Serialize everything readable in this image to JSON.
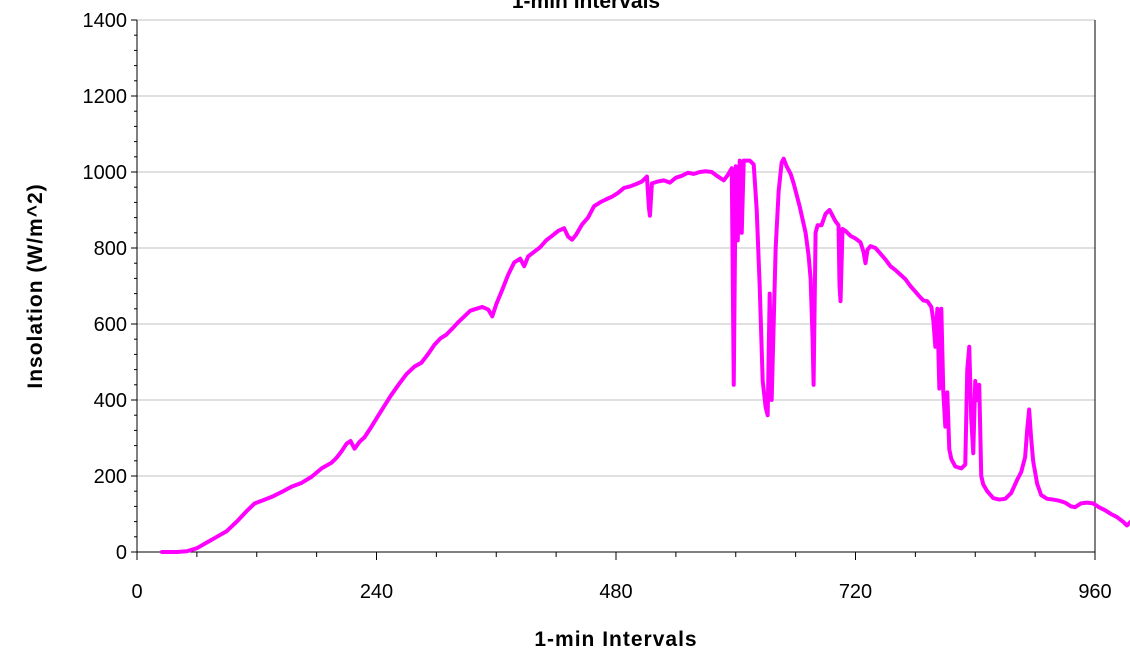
{
  "chart_data": {
    "type": "line",
    "title": "1-min Intervals",
    "xlabel": "1-min Intervals",
    "ylabel": "Insolation (W/m^2)",
    "xlim": [
      0,
      960
    ],
    "ylim": [
      0,
      1400
    ],
    "xticks": [
      0,
      240,
      480,
      720,
      960
    ],
    "yticks": [
      0,
      200,
      400,
      600,
      800,
      1000,
      1200,
      1400
    ],
    "grid": true,
    "line_color": "#ff00ff",
    "series": [
      {
        "values": [
          [
            25,
            0
          ],
          [
            40,
            0
          ],
          [
            50,
            2
          ],
          [
            60,
            10
          ],
          [
            70,
            25
          ],
          [
            80,
            40
          ],
          [
            90,
            55
          ],
          [
            100,
            80
          ],
          [
            110,
            108
          ],
          [
            118,
            128
          ],
          [
            125,
            135
          ],
          [
            135,
            145
          ],
          [
            145,
            158
          ],
          [
            155,
            172
          ],
          [
            165,
            182
          ],
          [
            175,
            198
          ],
          [
            185,
            220
          ],
          [
            195,
            235
          ],
          [
            200,
            248
          ],
          [
            205,
            265
          ],
          [
            210,
            285
          ],
          [
            214,
            292
          ],
          [
            218,
            272
          ],
          [
            223,
            290
          ],
          [
            228,
            302
          ],
          [
            235,
            330
          ],
          [
            242,
            360
          ],
          [
            248,
            385
          ],
          [
            254,
            410
          ],
          [
            262,
            440
          ],
          [
            270,
            468
          ],
          [
            278,
            488
          ],
          [
            285,
            498
          ],
          [
            292,
            522
          ],
          [
            298,
            545
          ],
          [
            304,
            562
          ],
          [
            310,
            572
          ],
          [
            316,
            588
          ],
          [
            322,
            605
          ],
          [
            328,
            620
          ],
          [
            334,
            635
          ],
          [
            340,
            640
          ],
          [
            346,
            645
          ],
          [
            352,
            638
          ],
          [
            356,
            620
          ],
          [
            360,
            652
          ],
          [
            366,
            690
          ],
          [
            372,
            730
          ],
          [
            378,
            762
          ],
          [
            384,
            772
          ],
          [
            388,
            752
          ],
          [
            392,
            778
          ],
          [
            398,
            790
          ],
          [
            404,
            802
          ],
          [
            410,
            820
          ],
          [
            416,
            832
          ],
          [
            422,
            845
          ],
          [
            428,
            852
          ],
          [
            432,
            830
          ],
          [
            436,
            822
          ],
          [
            440,
            835
          ],
          [
            446,
            862
          ],
          [
            452,
            880
          ],
          [
            458,
            910
          ],
          [
            464,
            920
          ],
          [
            470,
            928
          ],
          [
            476,
            935
          ],
          [
            482,
            945
          ],
          [
            488,
            958
          ],
          [
            494,
            962
          ],
          [
            500,
            968
          ],
          [
            506,
            975
          ],
          [
            511,
            988
          ],
          [
            513,
            905
          ],
          [
            514,
            885
          ],
          [
            516,
            970
          ],
          [
            522,
            975
          ],
          [
            528,
            978
          ],
          [
            534,
            972
          ],
          [
            540,
            985
          ],
          [
            546,
            990
          ],
          [
            552,
            998
          ],
          [
            558,
            995
          ],
          [
            564,
            1000
          ],
          [
            570,
            1002
          ],
          [
            576,
            1000
          ],
          [
            580,
            992
          ],
          [
            584,
            985
          ],
          [
            588,
            978
          ],
          [
            592,
            992
          ],
          [
            596,
            1010
          ],
          [
            598,
            440
          ],
          [
            600,
            1015
          ],
          [
            602,
            820
          ],
          [
            604,
            1030
          ],
          [
            606,
            840
          ],
          [
            608,
            1030
          ],
          [
            614,
            1030
          ],
          [
            618,
            1020
          ],
          [
            621,
            900
          ],
          [
            624,
            700
          ],
          [
            627,
            450
          ],
          [
            630,
            380
          ],
          [
            632,
            360
          ],
          [
            634,
            680
          ],
          [
            636,
            400
          ],
          [
            638,
            600
          ],
          [
            640,
            800
          ],
          [
            643,
            950
          ],
          [
            646,
            1025
          ],
          [
            648,
            1035
          ],
          [
            651,
            1015
          ],
          [
            655,
            995
          ],
          [
            658,
            970
          ],
          [
            661,
            940
          ],
          [
            664,
            910
          ],
          [
            667,
            875
          ],
          [
            670,
            840
          ],
          [
            673,
            780
          ],
          [
            675,
            720
          ],
          [
            677,
            560
          ],
          [
            678,
            440
          ],
          [
            680,
            840
          ],
          [
            682,
            860
          ],
          [
            686,
            860
          ],
          [
            690,
            890
          ],
          [
            694,
            900
          ],
          [
            696,
            890
          ],
          [
            700,
            870
          ],
          [
            703,
            860
          ],
          [
            704,
            700
          ],
          [
            705,
            660
          ],
          [
            707,
            850
          ],
          [
            710,
            845
          ],
          [
            715,
            832
          ],
          [
            720,
            825
          ],
          [
            725,
            815
          ],
          [
            728,
            790
          ],
          [
            730,
            760
          ],
          [
            732,
            795
          ],
          [
            735,
            805
          ],
          [
            740,
            800
          ],
          [
            745,
            785
          ],
          [
            750,
            770
          ],
          [
            755,
            752
          ],
          [
            760,
            742
          ],
          [
            765,
            730
          ],
          [
            770,
            718
          ],
          [
            775,
            700
          ],
          [
            780,
            685
          ],
          [
            785,
            670
          ],
          [
            788,
            662
          ],
          [
            792,
            660
          ],
          [
            796,
            645
          ],
          [
            798,
            610
          ],
          [
            800,
            540
          ],
          [
            802,
            640
          ],
          [
            804,
            430
          ],
          [
            806,
            640
          ],
          [
            808,
            420
          ],
          [
            810,
            330
          ],
          [
            812,
            420
          ],
          [
            814,
            270
          ],
          [
            816,
            245
          ],
          [
            820,
            225
          ],
          [
            826,
            220
          ],
          [
            830,
            230
          ],
          [
            832,
            480
          ],
          [
            834,
            540
          ],
          [
            836,
            350
          ],
          [
            838,
            260
          ],
          [
            840,
            450
          ],
          [
            842,
            400
          ],
          [
            844,
            440
          ],
          [
            846,
            200
          ],
          [
            848,
            178
          ],
          [
            852,
            160
          ],
          [
            858,
            142
          ],
          [
            864,
            138
          ],
          [
            870,
            140
          ],
          [
            876,
            155
          ],
          [
            882,
            190
          ],
          [
            886,
            210
          ],
          [
            890,
            250
          ],
          [
            892,
            320
          ],
          [
            894,
            375
          ],
          [
            896,
            300
          ],
          [
            898,
            240
          ],
          [
            902,
            180
          ],
          [
            906,
            150
          ],
          [
            912,
            140
          ],
          [
            918,
            138
          ],
          [
            924,
            135
          ],
          [
            930,
            130
          ],
          [
            936,
            120
          ],
          [
            940,
            118
          ],
          [
            946,
            128
          ],
          [
            952,
            130
          ],
          [
            958,
            128
          ],
          [
            964,
            118
          ],
          [
            970,
            110
          ],
          [
            976,
            100
          ],
          [
            982,
            92
          ],
          [
            988,
            80
          ],
          [
            992,
            70
          ],
          [
            996,
            80
          ],
          [
            1002,
            95
          ],
          [
            1006,
            100
          ],
          [
            1010,
            92
          ],
          [
            1016,
            80
          ],
          [
            1022,
            68
          ],
          [
            1028,
            55
          ],
          [
            1034,
            40
          ],
          [
            1040,
            30
          ],
          [
            1046,
            18
          ],
          [
            1052,
            8
          ],
          [
            1056,
            2
          ],
          [
            1062,
            0
          ],
          [
            1070,
            0
          ]
        ]
      }
    ]
  }
}
